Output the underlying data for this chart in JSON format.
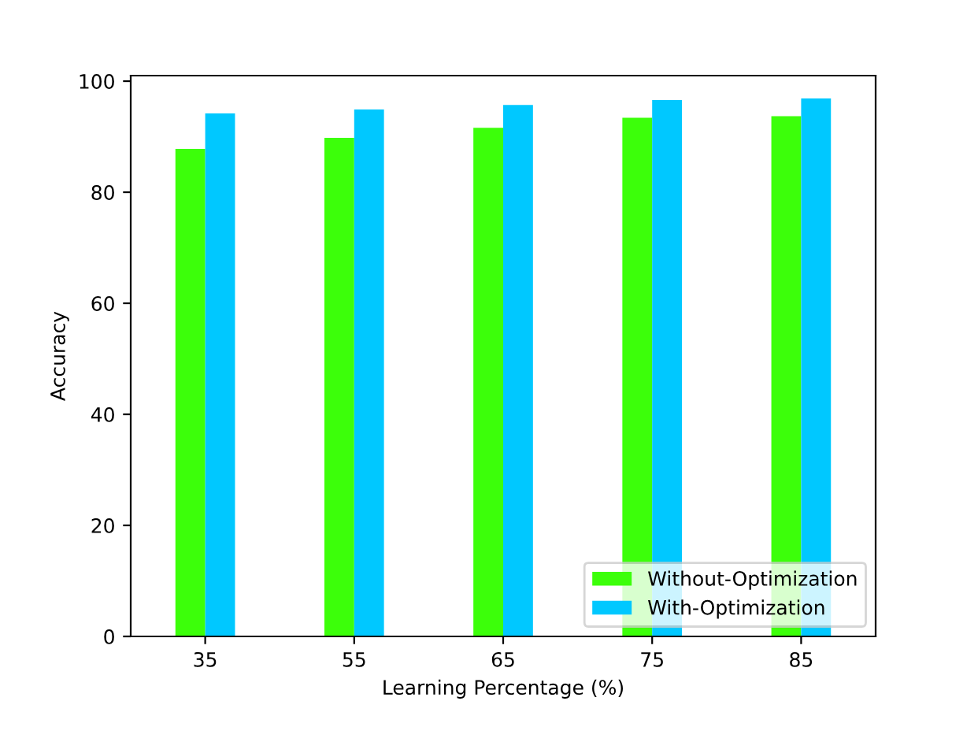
{
  "chart_data": {
    "type": "bar",
    "xlabel": "Learning Percentage (%)",
    "ylabel": "Accuracy",
    "categories": [
      "35",
      "55",
      "65",
      "75",
      "85"
    ],
    "series": [
      {
        "name": "Without-Optimization",
        "color": "#3cff0a",
        "values": [
          87.8,
          89.8,
          91.6,
          93.4,
          93.7
        ]
      },
      {
        "name": "With-Optimization",
        "color": "#00c8ff",
        "values": [
          94.2,
          94.9,
          95.7,
          96.6,
          96.9
        ]
      }
    ],
    "ylim": [
      0,
      101
    ],
    "yticks": [
      0,
      20,
      40,
      60,
      80,
      100
    ],
    "legend": "lower right",
    "grid": false
  }
}
